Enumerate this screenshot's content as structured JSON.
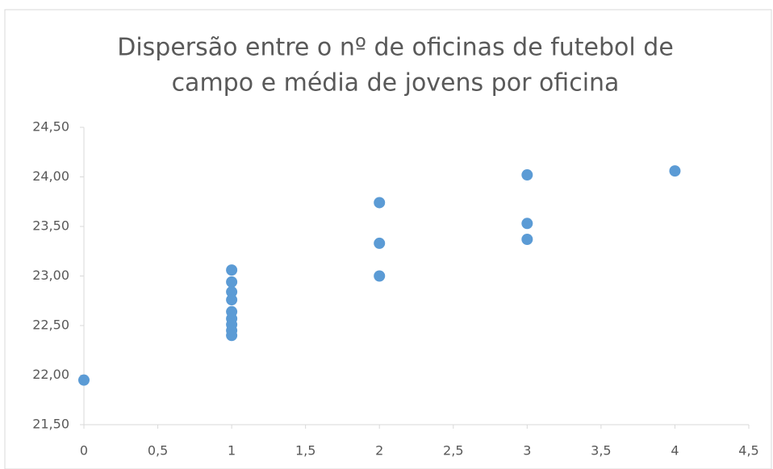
{
  "chart_data": {
    "type": "scatter",
    "title": [
      "Dispersão entre o nº de oficinas de futebol de",
      "campo e média de jovens por oficina"
    ],
    "color": "#5b9bd5",
    "grid": false,
    "x": [
      0,
      1,
      1,
      1,
      1,
      1,
      1,
      1,
      1,
      1,
      2,
      2,
      2,
      3,
      3,
      3,
      4
    ],
    "values": [
      21.95,
      23.06,
      22.94,
      22.84,
      22.76,
      22.64,
      22.57,
      22.51,
      22.45,
      22.4,
      23.74,
      23.33,
      23.0,
      24.02,
      23.53,
      23.37,
      24.06
    ],
    "xlim": [
      0,
      4.5
    ],
    "xticks": [
      0,
      {
        "value": 0.5,
        "label": "0,5"
      },
      1,
      {
        "value": 1.5,
        "label": "1,5"
      },
      2,
      {
        "value": 2.5,
        "label": "2,5"
      },
      3,
      {
        "value": 3.5,
        "label": "3,5"
      },
      4,
      {
        "value": 4.5,
        "label": "4,5"
      }
    ],
    "ylim": [
      21.5,
      24.5
    ],
    "yticks": [
      {
        "value": 21.5,
        "label": "21,50"
      },
      {
        "value": 22,
        "label": "22,00"
      },
      {
        "value": 22.5,
        "label": "22,50"
      },
      {
        "value": 23,
        "label": "23,00"
      },
      {
        "value": 23.5,
        "label": "23,50"
      },
      {
        "value": 24,
        "label": "24,00"
      },
      {
        "value": 24.5,
        "label": "24,50"
      }
    ]
  }
}
